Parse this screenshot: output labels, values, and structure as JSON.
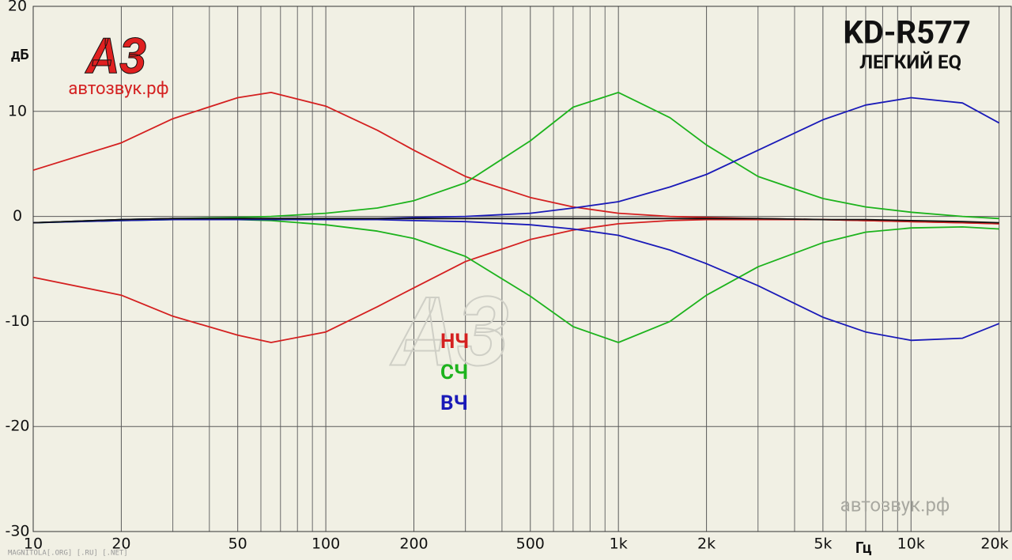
{
  "chart_data": {
    "type": "line",
    "title": "KD-R577",
    "subtitle": "ЛЕГКИЙ EQ",
    "y_label": "дБ",
    "x_label": "Гц",
    "logo": "А3",
    "logo_site": "автозвук.рф",
    "watermark_site": "автозвук.рф",
    "watermark_center": "А3",
    "watermark_footer": "MAGNITOLA[.ORG] [.RU] [.NET]",
    "x_log": true,
    "grid": true,
    "xlim": [
      10,
      22000
    ],
    "ylim": [
      -30,
      20
    ],
    "yticks": [
      -30,
      -20,
      -10,
      0,
      10,
      20
    ],
    "xticks": [
      10,
      20,
      50,
      100,
      200,
      500,
      {
        "value": 1000,
        "label": "1k"
      },
      {
        "value": 2000,
        "label": "2k"
      },
      {
        "value": 5000,
        "label": "5k"
      },
      {
        "value": 10000,
        "label": "10k"
      },
      {
        "value": 20000,
        "label": "20k"
      }
    ],
    "x_minor_grid": [
      30,
      40,
      60,
      70,
      80,
      90,
      300,
      400,
      600,
      700,
      800,
      900,
      3000,
      4000,
      6000,
      7000,
      8000,
      9000
    ],
    "x": [
      10,
      20,
      30,
      50,
      65,
      100,
      150,
      200,
      300,
      500,
      700,
      1000,
      1500,
      2000,
      3000,
      5000,
      7000,
      10000,
      15000,
      20000
    ],
    "series": [
      {
        "color": "#d42020",
        "values": [
          4.4,
          7,
          9.3,
          11.3,
          11.8,
          10.5,
          8.2,
          6.3,
          3.8,
          1.8,
          0.9,
          0.3,
          0,
          -0.1,
          -0.2,
          -0.3,
          -0.4,
          -0.5,
          -0.6,
          -0.7
        ]
      },
      {
        "color": "#d42020",
        "values": [
          -5.8,
          -7.5,
          -9.5,
          -11.3,
          -12,
          -11,
          -8.6,
          -6.8,
          -4.3,
          -2.2,
          -1.3,
          -0.7,
          -0.4,
          -0.3,
          -0.3,
          -0.3,
          -0.4,
          -0.5,
          -0.6,
          -0.7
        ]
      },
      {
        "color": "#1db31d",
        "values": [
          -0.6,
          -0.3,
          -0.2,
          -0.1,
          0,
          0.3,
          0.8,
          1.5,
          3.2,
          7.2,
          10.4,
          11.8,
          9.4,
          6.8,
          3.8,
          1.7,
          0.9,
          0.4,
          0,
          -0.2
        ]
      },
      {
        "color": "#1db31d",
        "values": [
          -0.6,
          -0.4,
          -0.3,
          -0.3,
          -0.4,
          -0.8,
          -1.4,
          -2.1,
          -3.8,
          -7.6,
          -10.5,
          -12,
          -10,
          -7.5,
          -4.8,
          -2.5,
          -1.5,
          -1.1,
          -1,
          -1.2
        ]
      },
      {
        "color": "#1a1ab8",
        "values": [
          -0.6,
          -0.3,
          -0.2,
          -0.2,
          -0.2,
          -0.2,
          -0.2,
          -0.1,
          0,
          0.3,
          0.8,
          1.4,
          2.8,
          4,
          6.3,
          9.2,
          10.6,
          11.3,
          10.8,
          8.9
        ]
      },
      {
        "color": "#1a1ab8",
        "values": [
          -0.6,
          -0.4,
          -0.3,
          -0.3,
          -0.3,
          -0.3,
          -0.3,
          -0.4,
          -0.5,
          -0.8,
          -1.2,
          -1.8,
          -3.2,
          -4.5,
          -6.6,
          -9.6,
          -11,
          -11.8,
          -11.6,
          -10.2
        ]
      },
      {
        "color": "#111111",
        "values": [
          -0.6,
          -0.3,
          -0.2,
          -0.2,
          -0.2,
          -0.2,
          -0.2,
          -0.2,
          -0.2,
          -0.2,
          -0.2,
          -0.2,
          -0.2,
          -0.2,
          -0.2,
          -0.3,
          -0.3,
          -0.4,
          -0.5,
          -0.6
        ]
      }
    ],
    "legend": [
      {
        "name": "НЧ",
        "color": "#d42020"
      },
      {
        "name": "СЧ",
        "color": "#1db31d"
      },
      {
        "name": "ВЧ",
        "color": "#1a1ab8"
      }
    ]
  }
}
